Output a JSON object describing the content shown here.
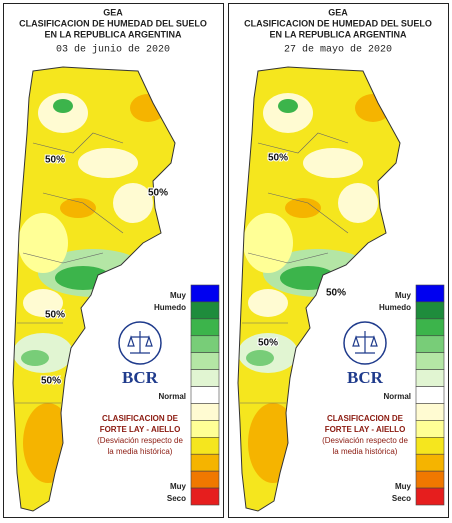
{
  "panels": [
    {
      "header": {
        "org": "GEA",
        "title_lines": [
          "CLASIFICACION DE HUMEDAD DEL SUELO",
          "EN LA REPUBLICA ARGENTINA"
        ],
        "date": "03 de junio de 2020"
      },
      "contour_labels": [
        "50%",
        "50%",
        "50%",
        "50%"
      ],
      "legend": {
        "wet_label": [
          "Muy",
          "Humedo"
        ],
        "normal_label": "Normal",
        "dry_label": [
          "Muy",
          "Seco"
        ],
        "colors": [
          "#0000f0",
          "#1e8c3c",
          "#3cb44b",
          "#78cd78",
          "#b4e6a5",
          "#e1f5d2",
          "#ffffff",
          "#fffbd2",
          "#ffff96",
          "#f5e61e",
          "#f5b400",
          "#f07800",
          "#e61e1e"
        ]
      },
      "logo": "BCR",
      "note_lines": [
        "CLASIFICACION DE",
        "FORTE LAY - AIELLO",
        "(Desviación respecto de",
        "la media histórica)"
      ]
    },
    {
      "header": {
        "org": "GEA",
        "title_lines": [
          "CLASIFICACION DE HUMEDAD DEL SUELO",
          "EN LA REPUBLICA ARGENTINA"
        ],
        "date": "27 de mayo de 2020"
      },
      "contour_labels": [
        "50%",
        "50%",
        "50%"
      ],
      "legend": {
        "wet_label": [
          "Muy",
          "Humedo"
        ],
        "normal_label": "Normal",
        "dry_label": [
          "Muy",
          "Seco"
        ],
        "colors": [
          "#0000f0",
          "#1e8c3c",
          "#3cb44b",
          "#78cd78",
          "#b4e6a5",
          "#e1f5d2",
          "#ffffff",
          "#fffbd2",
          "#ffff96",
          "#f5e61e",
          "#f5b400",
          "#f07800",
          "#e61e1e"
        ]
      },
      "logo": "BCR",
      "note_lines": [
        "CLASIFICACION DE",
        "FORTE LAY - AIELLO",
        "(Desviación respecto de",
        "la media histórica)"
      ]
    }
  ]
}
